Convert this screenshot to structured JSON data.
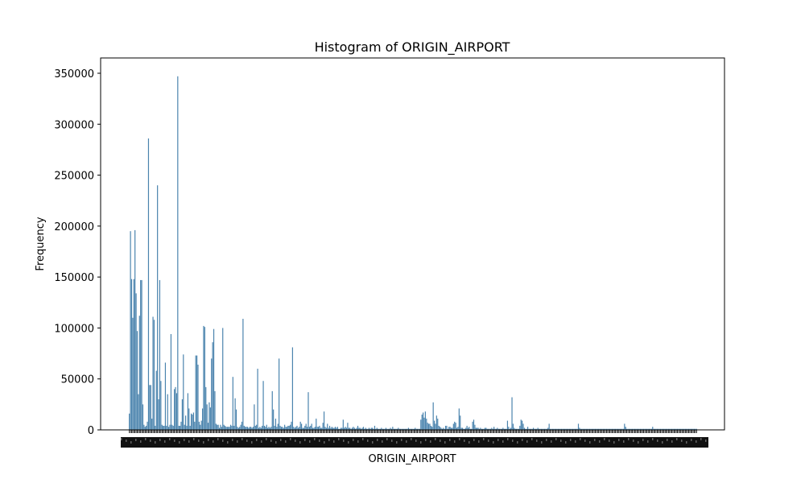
{
  "chart_data": {
    "type": "bar",
    "title": "Histogram of ORIGIN_AIRPORT",
    "xlabel": "ORIGIN_AIRPORT",
    "ylabel": "Frequency",
    "ylim": [
      0,
      365000
    ],
    "yticks": [
      0,
      50000,
      100000,
      150000,
      200000,
      250000,
      300000,
      350000
    ],
    "grid": false,
    "legend": "none",
    "bar_color": "#4a83ad",
    "categories_note": "x tick labels overlap and are illegible",
    "values": [
      16000,
      195000,
      148000,
      110000,
      148000,
      196000,
      134000,
      97000,
      35000,
      112000,
      147000,
      147000,
      25000,
      5000,
      3000,
      4000,
      8000,
      286000,
      44000,
      44000,
      11000,
      111000,
      108000,
      4000,
      58000,
      240000,
      30000,
      147000,
      48000,
      5000,
      4000,
      4000,
      66000,
      4000,
      35000,
      3000,
      5000,
      94000,
      5000,
      4000,
      40000,
      42000,
      36000,
      347000,
      4000,
      4000,
      8000,
      30000,
      74000,
      5000,
      14000,
      4000,
      36000,
      21000,
      4000,
      16000,
      15000,
      17000,
      8000,
      73000,
      73000,
      64000,
      8000,
      5000,
      9000,
      21000,
      102000,
      101000,
      42000,
      25000,
      7000,
      27000,
      22000,
      70000,
      86000,
      99000,
      38000,
      6000,
      5000,
      5000,
      2000,
      5000,
      3000,
      100000,
      5000,
      4000,
      3000,
      3000,
      3000,
      3000,
      5000,
      4000,
      52000,
      4000,
      31000,
      20000,
      3000,
      2000,
      3000,
      5000,
      8000,
      109000,
      4000,
      3000,
      3000,
      3000,
      2000,
      3000,
      3000,
      2000,
      3000,
      25000,
      4000,
      5000,
      60000,
      2000,
      3000,
      2000,
      4000,
      48000,
      4000,
      3000,
      5000,
      2000,
      3000,
      2000,
      3000,
      38000,
      20000,
      4000,
      11000,
      3000,
      6000,
      70000,
      4000,
      3000,
      3000,
      2000,
      5000,
      3000,
      3000,
      4000,
      4000,
      5000,
      8000,
      81000,
      3000,
      2000,
      3000,
      4000,
      2000,
      3000,
      8000,
      6000,
      2000,
      2000,
      4000,
      6000,
      3000,
      37000,
      3000,
      4000,
      6000,
      2000,
      2000,
      3000,
      11000,
      3000,
      3000,
      4000,
      2000,
      2000,
      7000,
      18000,
      3000,
      2000,
      6000,
      2000,
      4000,
      2000,
      3000,
      2000,
      2000,
      3000,
      2000,
      3000,
      1000,
      1000,
      2000,
      2000,
      10000,
      2000,
      3000,
      2000,
      7000,
      2000,
      2000,
      1000,
      2000,
      3000,
      2000,
      1000,
      2000,
      4000,
      2000,
      2000,
      1000,
      2000,
      3000,
      1000,
      2000,
      1000,
      1000,
      2000,
      1000,
      2000,
      2000,
      1000,
      4000,
      1000,
      2000,
      1000,
      1000,
      1000,
      2000,
      1000,
      1000,
      1000,
      2000,
      1000,
      1000,
      1000,
      2000,
      1000,
      3000,
      1000,
      1000,
      1000,
      1000,
      2000,
      1000,
      1000,
      1000,
      1000,
      1000,
      1000,
      1000,
      1000,
      2000,
      1000,
      1000,
      1000,
      1000,
      1000,
      2000,
      1000,
      1000,
      1000,
      1000,
      10000,
      15000,
      17000,
      12000,
      18000,
      11000,
      7000,
      6000,
      6000,
      4000,
      3000,
      27000,
      9000,
      6000,
      14000,
      11000,
      4000,
      3000,
      2000,
      1000,
      2000,
      1000,
      4000,
      4000,
      1000,
      3000,
      3000,
      2000,
      2000,
      6000,
      8000,
      7000,
      2000,
      3000,
      21000,
      14000,
      2000,
      2000,
      1000,
      1000,
      2000,
      4000,
      2000,
      3000,
      1000,
      1000,
      8000,
      10000,
      5000,
      2000,
      2000,
      2000,
      1000,
      2000,
      1000,
      1000,
      1000,
      2000,
      2000,
      1000,
      1000,
      1000,
      1000,
      2000,
      1000,
      3000,
      1000,
      1000,
      2000,
      1000,
      1000,
      1000,
      1000,
      2000,
      1000,
      1000,
      1000,
      9000,
      3000,
      1000,
      2000,
      32000,
      6000,
      2000,
      1000,
      1000,
      1000,
      1000,
      4000,
      10000,
      9000,
      6000,
      2000,
      1000,
      1000,
      3000,
      1000,
      1000,
      1000,
      1000,
      2000,
      1000,
      1000,
      1000,
      2000,
      1000,
      1000,
      1000,
      1000,
      1000,
      1000,
      1000,
      1000,
      2000,
      6000,
      1000,
      1000,
      1000,
      1000,
      1000,
      1000,
      1000,
      1000,
      1000,
      1000,
      1000,
      1000,
      1000,
      1000,
      1000,
      1000,
      1000,
      1000,
      1000,
      1000,
      1000,
      1000,
      1000,
      1000,
      1000,
      6000,
      2000,
      1000,
      1000,
      1000,
      1000,
      1000,
      1000,
      1000,
      1000,
      1000,
      1000,
      1000,
      1000,
      1000,
      1000,
      1000,
      1000,
      1000,
      1000,
      1000,
      1000,
      1000,
      1000,
      1000,
      1000,
      1000,
      1000,
      1000,
      1000,
      1000,
      1000,
      1000,
      1000,
      1000,
      1000,
      1000,
      1000,
      1000,
      1000,
      1000,
      6000,
      3000,
      1000,
      1000,
      1000,
      1000,
      1000,
      1000,
      1000,
      1000,
      1000,
      1000,
      1000,
      1000,
      1000,
      1000,
      1000,
      1000,
      1000,
      1000,
      1000,
      1000,
      1000,
      1000,
      1000,
      3000,
      1000,
      1000,
      1000,
      1000,
      1000,
      1000,
      1000,
      1000,
      1000,
      1000,
      1000,
      1000,
      1000,
      1000,
      1000,
      1000,
      1000,
      1000,
      1000,
      1000,
      1000,
      1000,
      1000,
      1000,
      1000,
      1000,
      1000,
      1000,
      1000,
      1000,
      1000,
      1000,
      1000,
      1000,
      1000,
      1000,
      1000,
      1000,
      1000
    ]
  }
}
